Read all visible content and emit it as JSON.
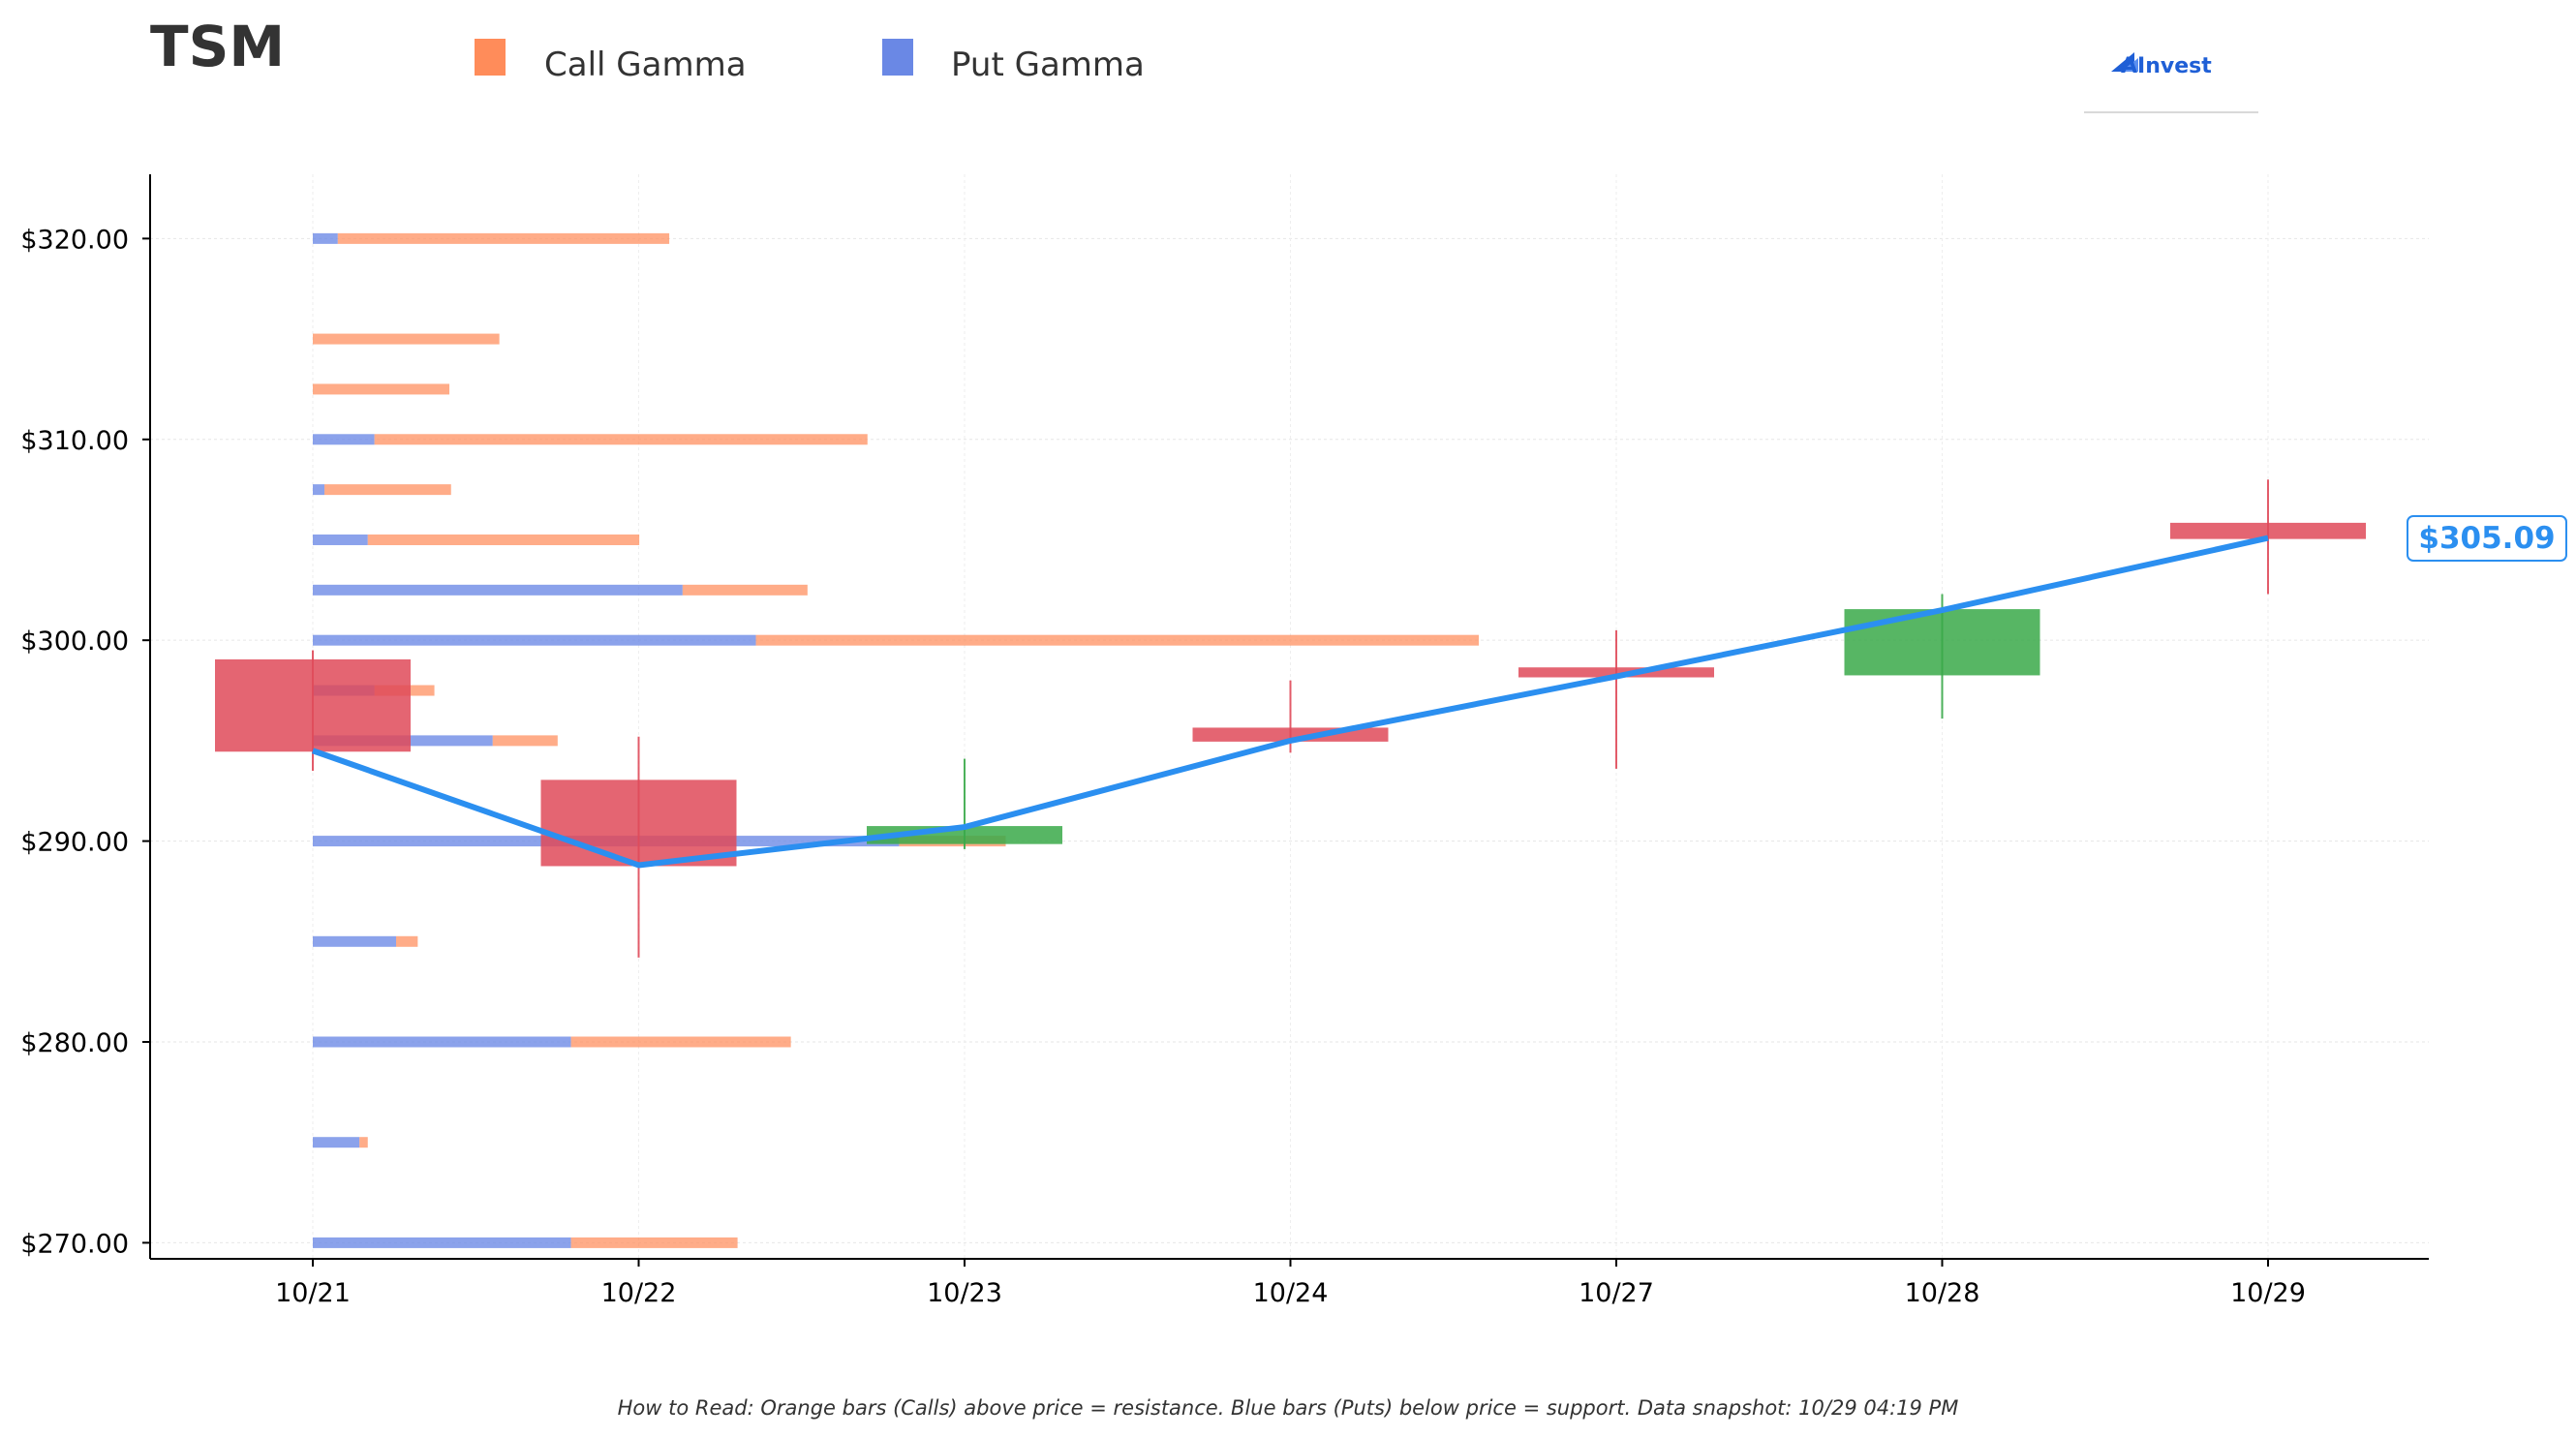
{
  "title": "TSM",
  "legend": [
    {
      "label": "Call Gamma",
      "color": "#ff8c5a"
    },
    {
      "label": "Put Gamma",
      "color": "#6a88e5"
    }
  ],
  "logo": {
    "text": "AInvest",
    "icon": "ainvest-logo-icon"
  },
  "footnote": "How to Read: Orange bars (Calls) above price = resistance. Blue bars (Puts) below price = support. Data snapshot: 10/29 04:19 PM",
  "colors": {
    "call": "#ff8c5a",
    "put": "#6a88e5",
    "up_candle": "#3aaa4a",
    "down_candle": "#e04b5a",
    "price_line": "#2b8ff0"
  },
  "chart_data": {
    "type": "candlestick",
    "categories": [
      "10/21",
      "10/22",
      "10/23",
      "10/24",
      "10/27",
      "10/28",
      "10/29"
    ],
    "candles": [
      {
        "date": "10/21",
        "open": 299.0,
        "high": 299.5,
        "low": 293.5,
        "close": 294.5
      },
      {
        "date": "10/22",
        "open": 293.0,
        "high": 295.2,
        "low": 284.2,
        "close": 288.8
      },
      {
        "date": "10/23",
        "open": 289.9,
        "high": 294.1,
        "low": 289.6,
        "close": 290.7
      },
      {
        "date": "10/24",
        "open": 295.6,
        "high": 298.0,
        "low": 294.4,
        "close": 295.0
      },
      {
        "date": "10/27",
        "open": 298.6,
        "high": 300.5,
        "low": 293.6,
        "close": 298.2
      },
      {
        "date": "10/28",
        "open": 298.3,
        "high": 302.3,
        "low": 296.1,
        "close": 301.5
      },
      {
        "date": "10/29",
        "open": 305.8,
        "high": 308.0,
        "low": 302.3,
        "close": 305.09
      }
    ],
    "price_line": [
      294.5,
      288.8,
      290.7,
      295.0,
      298.2,
      301.5,
      305.09
    ],
    "current_price_label": "$305.09",
    "gamma_bars": [
      {
        "strike": 270.0,
        "put": 1.55,
        "call": 1.0
      },
      {
        "strike": 275.0,
        "put": 0.28,
        "call": 0.05
      },
      {
        "strike": 280.0,
        "put": 1.55,
        "call": 1.32
      },
      {
        "strike": 285.0,
        "put": 0.5,
        "call": 0.13
      },
      {
        "strike": 290.0,
        "put": 3.52,
        "call": 0.0
      },
      {
        "strike": 295.0,
        "put": 1.08,
        "call": 0.39
      },
      {
        "strike": 297.5,
        "put": 0.37,
        "call": 0.36
      },
      {
        "strike": 300.0,
        "put": 2.66,
        "call": 4.34
      },
      {
        "strike": 302.5,
        "put": 2.22,
        "call": 0.75
      },
      {
        "strike": 305.0,
        "put": 0.33,
        "call": 1.63
      },
      {
        "strike": 307.5,
        "put": 0.07,
        "call": 0.76
      },
      {
        "strike": 310.0,
        "put": 0.37,
        "call": 2.96
      },
      {
        "strike": 312.5,
        "put": 0.0,
        "call": 0.82
      },
      {
        "strike": 315.0,
        "put": 0.0,
        "call": 1.12
      },
      {
        "strike": 320.0,
        "put": 0.15,
        "call": 1.99
      }
    ],
    "gamma_bar_extra_call_at_290": 0.64,
    "yticks": [
      "$270.00",
      "$280.00",
      "$290.00",
      "$300.00",
      "$310.00",
      "$320.00"
    ],
    "ytick_values": [
      270,
      280,
      290,
      300,
      310,
      320
    ],
    "ylim": [
      269.2,
      323.2
    ],
    "grid": true
  }
}
